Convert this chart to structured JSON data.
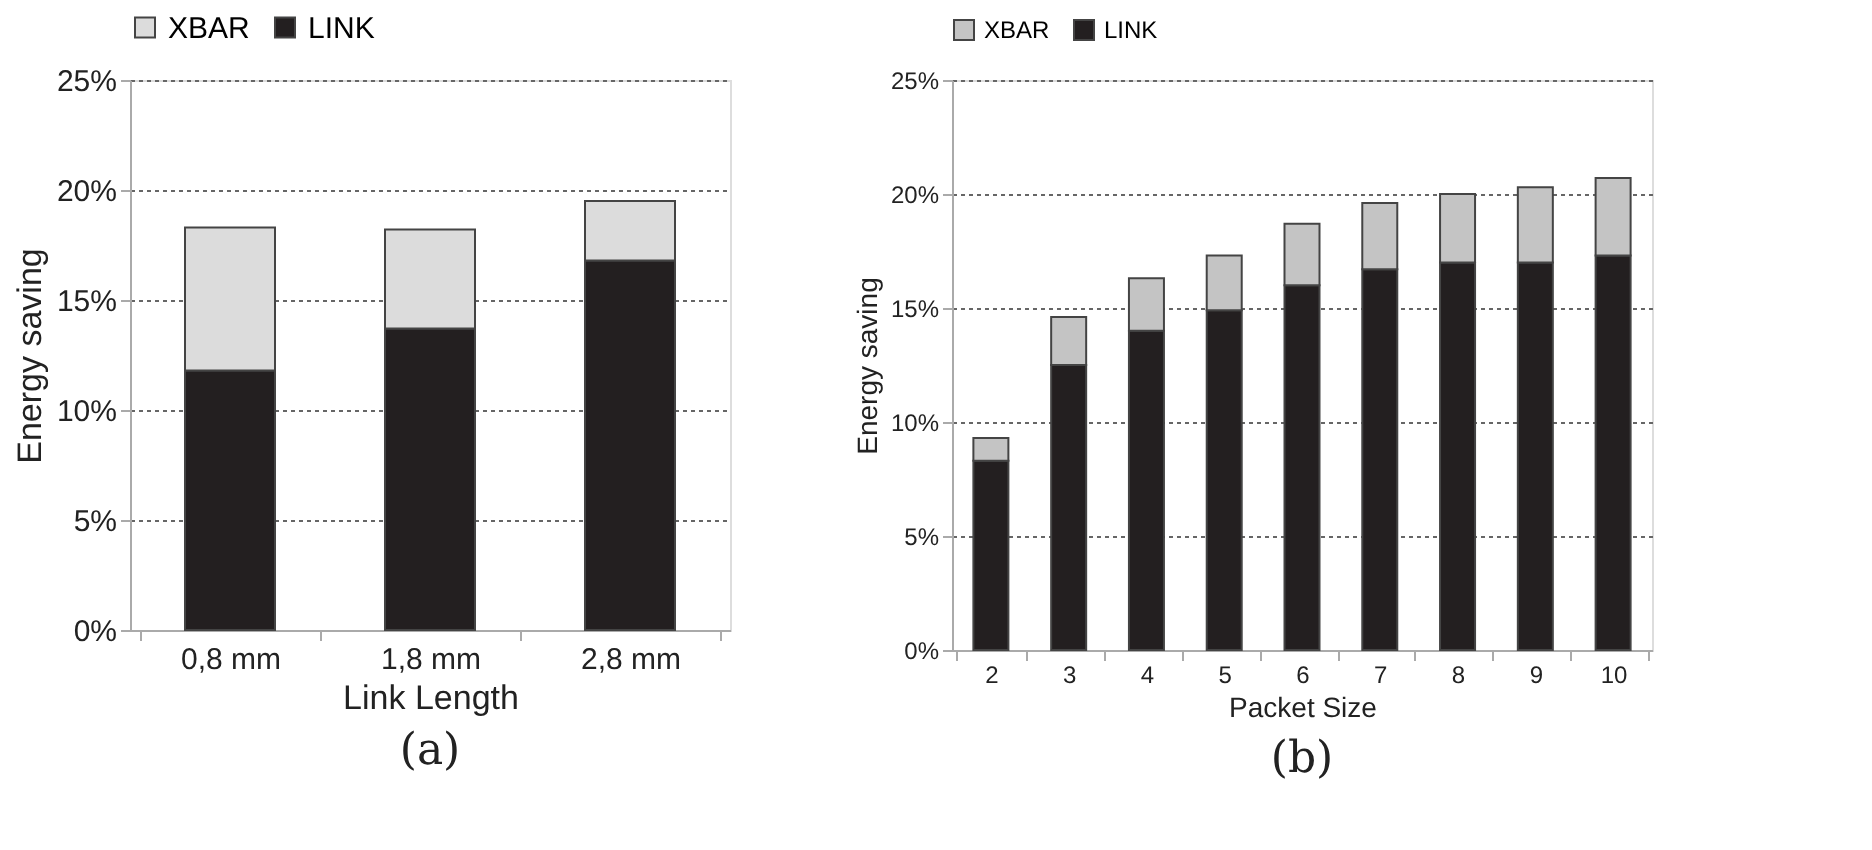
{
  "chart_data": [
    {
      "type": "bar",
      "stacked": true,
      "categories": [
        "0,8 mm",
        "1,8 mm",
        "2,8 mm"
      ],
      "xlabel": "Link Length",
      "ylabel": "Energy saving",
      "series": [
        {
          "name": "LINK",
          "color": "#231f20",
          "values": [
            11.8,
            13.7,
            16.8
          ]
        },
        {
          "name": "XBAR",
          "color": "#dcdcdc",
          "values": [
            6.5,
            4.5,
            2.7
          ]
        }
      ],
      "ylim": [
        0,
        25
      ],
      "yticks": [
        {
          "value": 0,
          "label": "0%"
        },
        {
          "value": 5,
          "label": "5%"
        },
        {
          "value": 10,
          "label": "10%"
        },
        {
          "value": 15,
          "label": "15%"
        },
        {
          "value": 20,
          "label": "20%"
        },
        {
          "value": 25,
          "label": "25%"
        }
      ],
      "grid": "y",
      "legend": "top",
      "annotations": [
        "(a)"
      ]
    },
    {
      "type": "bar",
      "stacked": true,
      "categories": [
        "2",
        "3",
        "4",
        "5",
        "6",
        "7",
        "8",
        "9",
        "10"
      ],
      "xlabel": "Packet Size",
      "ylabel": "Energy saving",
      "series": [
        {
          "name": "LINK",
          "color": "#231f20",
          "values": [
            8.3,
            12.5,
            14.0,
            14.9,
            16.0,
            16.7,
            17.0,
            17.0,
            17.3
          ]
        },
        {
          "name": "XBAR",
          "color": "#c4c4c4",
          "values": [
            1.0,
            2.1,
            2.3,
            2.4,
            2.7,
            2.9,
            3.0,
            3.3,
            3.4
          ]
        }
      ],
      "ylim": [
        0,
        25
      ],
      "yticks": [
        {
          "value": 0,
          "label": "0%"
        },
        {
          "value": 5,
          "label": "5%"
        },
        {
          "value": 10,
          "label": "10%"
        },
        {
          "value": 15,
          "label": "15%"
        },
        {
          "value": 20,
          "label": "20%"
        },
        {
          "value": 25,
          "label": "25%"
        }
      ],
      "grid": "y",
      "legend": "top",
      "annotations": [
        "(b)"
      ]
    }
  ]
}
